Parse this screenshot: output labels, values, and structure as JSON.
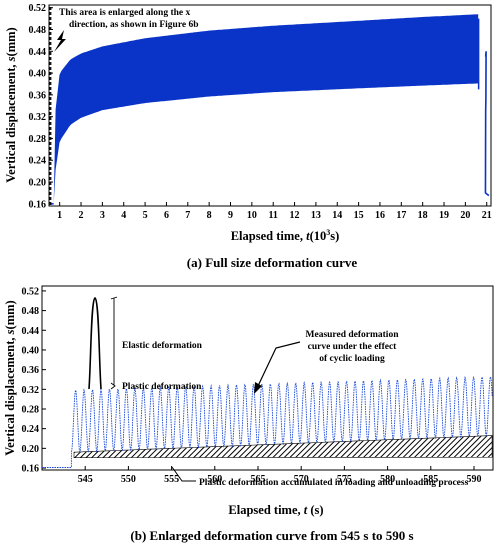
{
  "chart_data": [
    {
      "type": "area",
      "ylabel_text": "Vertical displacement, ",
      "ylabel_var": "s",
      "ylabel_unit": "(mm)",
      "xlabel_text": "Elapsed time, ",
      "xlabel_var": "t",
      "xlabel_unit_pre": "(10",
      "xlabel_unit_sup": "3",
      "xlabel_unit_post": "s)",
      "caption": "(a) Full size deformation curve",
      "annotation": [
        "This area is enlarged along the x",
        "direction, as shown in Figure 6b"
      ],
      "xticks": [
        1,
        2,
        3,
        4,
        5,
        6,
        7,
        8,
        9,
        10,
        11,
        12,
        13,
        14,
        15,
        16,
        17,
        18,
        19,
        20,
        21
      ],
      "yticks": [
        "0.16",
        "0.20",
        "0.24",
        "0.28",
        "0.32",
        "0.36",
        "0.40",
        "0.44",
        "0.48",
        "0.52"
      ],
      "xlim": [
        0.5,
        21.2
      ],
      "ylim": [
        0.156,
        0.525
      ],
      "envelope_upper": [
        [
          0.72,
          0.16
        ],
        [
          0.8,
          0.33
        ],
        [
          1.0,
          0.4
        ],
        [
          1.5,
          0.425
        ],
        [
          2,
          0.436
        ],
        [
          3,
          0.449
        ],
        [
          5,
          0.464
        ],
        [
          8,
          0.478
        ],
        [
          11,
          0.487
        ],
        [
          15,
          0.496
        ],
        [
          18,
          0.503
        ],
        [
          20.6,
          0.508
        ]
      ],
      "envelope_lower": [
        [
          0.72,
          0.16
        ],
        [
          0.8,
          0.22
        ],
        [
          1.0,
          0.275
        ],
        [
          1.5,
          0.305
        ],
        [
          2,
          0.318
        ],
        [
          3,
          0.332
        ],
        [
          5,
          0.345
        ],
        [
          8,
          0.357
        ],
        [
          11,
          0.365
        ],
        [
          15,
          0.372
        ],
        [
          18,
          0.377
        ],
        [
          20.6,
          0.381
        ]
      ]
    },
    {
      "type": "line",
      "ylabel_text": "Vertical displacement, ",
      "ylabel_var": "s",
      "ylabel_unit": "(mm)",
      "xlabel_text": "Elapsed time, ",
      "xlabel_var": "t",
      "xlabel_unit": " (s)",
      "caption": "(b) Enlarged deformation curve from 545 s to 590 s",
      "xticks": [
        545,
        550,
        555,
        560,
        565,
        570,
        575,
        580,
        585,
        590
      ],
      "yticks": [
        "0.16",
        "0.20",
        "0.24",
        "0.28",
        "0.32",
        "0.36",
        "0.40",
        "0.44",
        "0.48",
        "0.52"
      ],
      "xlim": [
        540,
        592.2
      ],
      "ylim": [
        0.156,
        0.53
      ],
      "start_time": 543.4,
      "baseline": 0.161,
      "period": 0.98,
      "peak_start": 0.318,
      "peak_end": 0.346,
      "plastic_start": 0.192,
      "plastic_end": 0.226,
      "annotations": {
        "elastic": "Elastic deformation",
        "plastic": "Plastic deformation",
        "measured": [
          "Measured deformation",
          "curve under the effect",
          "of cyclic loading"
        ],
        "accumulated": "Plastic deformation accumulated in loading and unloading process"
      }
    }
  ]
}
